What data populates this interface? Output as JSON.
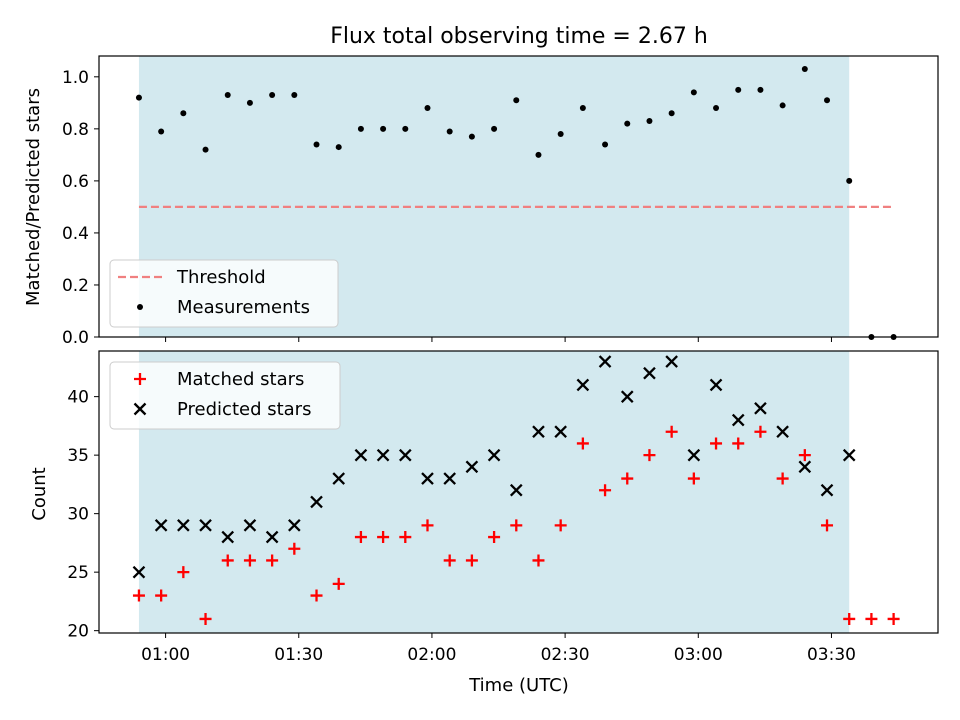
{
  "chart_data": [
    {
      "type": "scatter",
      "title": "Flux total observing time = 2.67 h",
      "xlabel": "",
      "ylabel": "Matched/Predicted stars",
      "ylim": [
        0.0,
        1.08
      ],
      "yticks": [
        "0.0",
        "0.2",
        "0.4",
        "0.6",
        "0.8",
        "1.0"
      ],
      "ytick_values": [
        0.0,
        0.2,
        0.4,
        0.6,
        0.8,
        1.0
      ],
      "xlim": [
        "00:45",
        "03:54"
      ],
      "shaded_span": [
        "00:54",
        "03:34"
      ],
      "shaded_color": "#d3e9ef",
      "legend_position": "lower left",
      "series": [
        {
          "name": "Threshold",
          "style": "dashed line",
          "color": "#f08080",
          "x": [
            "00:54",
            "03:44"
          ],
          "y": [
            0.5,
            0.5
          ]
        },
        {
          "name": "Measurements",
          "style": "dot",
          "color": "#000000",
          "x": [
            "00:54",
            "00:59",
            "01:04",
            "01:09",
            "01:14",
            "01:19",
            "01:24",
            "01:29",
            "01:34",
            "01:39",
            "01:44",
            "01:49",
            "01:54",
            "01:59",
            "02:04",
            "02:09",
            "02:14",
            "02:19",
            "02:24",
            "02:29",
            "02:34",
            "02:39",
            "02:44",
            "02:49",
            "02:54",
            "02:59",
            "03:04",
            "03:09",
            "03:14",
            "03:19",
            "03:24",
            "03:29",
            "03:34",
            "03:39",
            "03:44"
          ],
          "y": [
            0.92,
            0.79,
            0.86,
            0.72,
            0.93,
            0.9,
            0.93,
            0.93,
            0.74,
            0.73,
            0.8,
            0.8,
            0.8,
            0.88,
            0.79,
            0.77,
            0.8,
            0.91,
            0.7,
            0.78,
            0.88,
            0.74,
            0.82,
            0.83,
            0.86,
            0.94,
            0.88,
            0.95,
            0.95,
            0.89,
            1.03,
            0.91,
            0.6,
            0.0,
            0.0
          ]
        }
      ]
    },
    {
      "type": "scatter",
      "title": "",
      "xlabel": "Time (UTC)",
      "ylabel": "Count",
      "ylim": [
        19.8,
        43.9
      ],
      "yticks": [
        "20",
        "25",
        "30",
        "35",
        "40"
      ],
      "ytick_values": [
        20,
        25,
        30,
        35,
        40
      ],
      "xlim": [
        "00:45",
        "03:54"
      ],
      "xticks": [
        "01:00",
        "01:30",
        "02:00",
        "02:30",
        "03:00",
        "03:30"
      ],
      "shaded_span": [
        "00:54",
        "03:34"
      ],
      "shaded_color": "#d3e9ef",
      "legend_position": "upper left",
      "series": [
        {
          "name": "Matched stars",
          "marker": "plus",
          "color": "#ff0000",
          "x": [
            "00:54",
            "00:59",
            "01:04",
            "01:09",
            "01:14",
            "01:19",
            "01:24",
            "01:29",
            "01:34",
            "01:39",
            "01:44",
            "01:49",
            "01:54",
            "01:59",
            "02:04",
            "02:09",
            "02:14",
            "02:19",
            "02:24",
            "02:29",
            "02:34",
            "02:39",
            "02:44",
            "02:49",
            "02:54",
            "02:59",
            "03:04",
            "03:09",
            "03:14",
            "03:19",
            "03:24",
            "03:29",
            "03:34",
            "03:39",
            "03:44"
          ],
          "y": [
            23,
            23,
            25,
            21,
            26,
            26,
            26,
            27,
            23,
            24,
            28,
            28,
            28,
            29,
            26,
            26,
            28,
            29,
            26,
            29,
            36,
            32,
            33,
            35,
            37,
            33,
            36,
            36,
            37,
            33,
            35,
            29,
            21,
            21,
            21
          ]
        },
        {
          "name": "Predicted stars",
          "marker": "x",
          "color": "#000000",
          "x": [
            "00:54",
            "00:59",
            "01:04",
            "01:09",
            "01:14",
            "01:19",
            "01:24",
            "01:29",
            "01:34",
            "01:39",
            "01:44",
            "01:49",
            "01:54",
            "01:59",
            "02:04",
            "02:09",
            "02:14",
            "02:19",
            "02:24",
            "02:29",
            "02:34",
            "02:39",
            "02:44",
            "02:49",
            "02:54",
            "02:59",
            "03:04",
            "03:09",
            "03:14",
            "03:19",
            "03:24",
            "03:29",
            "03:34"
          ],
          "y": [
            25,
            29,
            29,
            29,
            28,
            29,
            28,
            29,
            31,
            33,
            35,
            35,
            35,
            33,
            33,
            34,
            35,
            32,
            37,
            37,
            41,
            43,
            40,
            42,
            43,
            35,
            41,
            38,
            39,
            37,
            34,
            32,
            35
          ]
        }
      ]
    }
  ]
}
